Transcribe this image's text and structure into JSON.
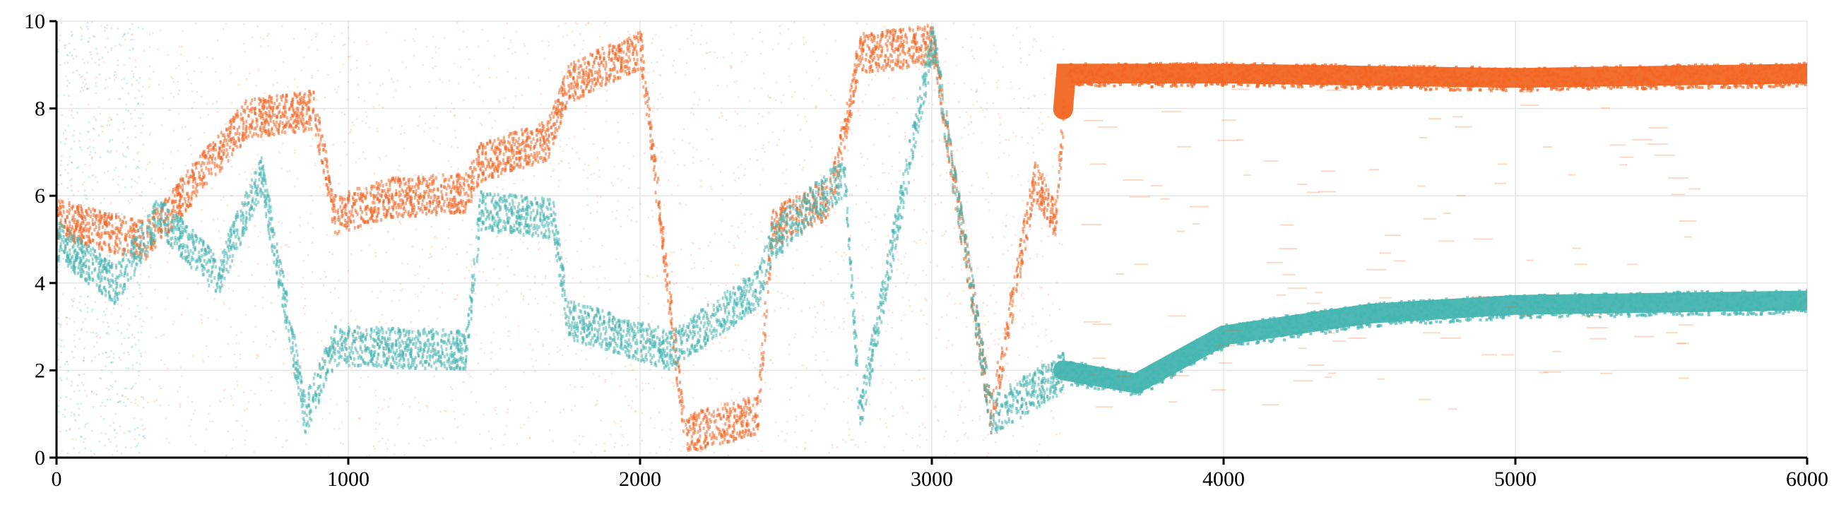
{
  "chart_data": {
    "type": "scatter",
    "title": "",
    "xlabel": "",
    "ylabel": "",
    "xlim": [
      0,
      6000
    ],
    "ylim": [
      0,
      10
    ],
    "x_ticks": [
      0,
      1000,
      2000,
      3000,
      4000,
      5000,
      6000
    ],
    "y_ticks": [
      0,
      2,
      4,
      6,
      8,
      10
    ],
    "x_tick_labels": [
      "0",
      "1000",
      "2000",
      "3000",
      "4000",
      "5000",
      "6000"
    ],
    "y_tick_labels": [
      "0",
      "2",
      "4",
      "6",
      "8",
      "10"
    ],
    "grid": true,
    "legend": "none",
    "series": [
      {
        "name": "orange",
        "color": "#f26522",
        "description": "dense scattered trajectory that converges near y≈8.8 after x≈3450",
        "trace": [
          {
            "x": 0,
            "y": 5.5
          },
          {
            "x": 300,
            "y": 5.0
          },
          {
            "x": 650,
            "y": 7.8
          },
          {
            "x": 880,
            "y": 8.0
          },
          {
            "x": 950,
            "y": 5.6
          },
          {
            "x": 1150,
            "y": 6.0
          },
          {
            "x": 1400,
            "y": 6.1
          },
          {
            "x": 1450,
            "y": 6.8
          },
          {
            "x": 1680,
            "y": 7.3
          },
          {
            "x": 1750,
            "y": 8.6
          },
          {
            "x": 2000,
            "y": 9.4
          },
          {
            "x": 2150,
            "y": 0.6
          },
          {
            "x": 2400,
            "y": 1.0
          },
          {
            "x": 2450,
            "y": 5.3
          },
          {
            "x": 2650,
            "y": 6.0
          },
          {
            "x": 2750,
            "y": 9.3
          },
          {
            "x": 3000,
            "y": 9.5
          },
          {
            "x": 3200,
            "y": 1.0
          },
          {
            "x": 3350,
            "y": 6.4
          },
          {
            "x": 3420,
            "y": 5.5
          },
          {
            "x": 3460,
            "y": 8.8
          },
          {
            "x": 4000,
            "y": 8.8
          },
          {
            "x": 5000,
            "y": 8.7
          },
          {
            "x": 6000,
            "y": 8.8
          }
        ]
      },
      {
        "name": "teal",
        "color": "#45b5b0",
        "description": "dense scattered trajectory that rises smoothly to y≈3.5 after x≈3450",
        "trace": [
          {
            "x": 0,
            "y": 5.0
          },
          {
            "x": 200,
            "y": 4.0
          },
          {
            "x": 350,
            "y": 5.6
          },
          {
            "x": 550,
            "y": 4.2
          },
          {
            "x": 700,
            "y": 6.5
          },
          {
            "x": 850,
            "y": 1.0
          },
          {
            "x": 950,
            "y": 2.6
          },
          {
            "x": 1400,
            "y": 2.5
          },
          {
            "x": 1450,
            "y": 5.7
          },
          {
            "x": 1700,
            "y": 5.5
          },
          {
            "x": 1750,
            "y": 3.2
          },
          {
            "x": 2100,
            "y": 2.5
          },
          {
            "x": 2400,
            "y": 3.9
          },
          {
            "x": 2450,
            "y": 5.0
          },
          {
            "x": 2700,
            "y": 6.5
          },
          {
            "x": 2750,
            "y": 1.0
          },
          {
            "x": 3000,
            "y": 9.6
          },
          {
            "x": 3200,
            "y": 1.0
          },
          {
            "x": 3450,
            "y": 2.0
          },
          {
            "x": 3700,
            "y": 1.7
          },
          {
            "x": 4000,
            "y": 2.8
          },
          {
            "x": 4500,
            "y": 3.3
          },
          {
            "x": 5000,
            "y": 3.5
          },
          {
            "x": 6000,
            "y": 3.6
          }
        ]
      }
    ]
  }
}
